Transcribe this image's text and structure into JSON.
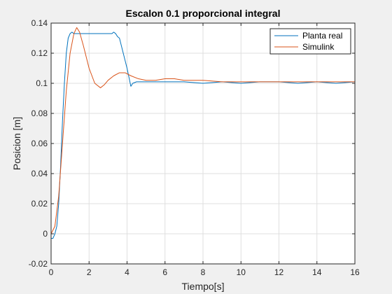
{
  "chart_data": {
    "type": "line",
    "title": "Escalon 0.1 proporcional integral",
    "xlabel": "Tiempo[s]",
    "ylabel": "Posicion [m]",
    "xlim": [
      0,
      16
    ],
    "ylim": [
      -0.02,
      0.14
    ],
    "xticks": [
      "0",
      "2",
      "4",
      "6",
      "8",
      "10",
      "12",
      "14",
      "16"
    ],
    "yticks": [
      "-0.02",
      "0",
      "0.02",
      "0.04",
      "0.06",
      "0.08",
      "0.1",
      "0.12",
      "0.14"
    ],
    "grid": true,
    "legend_position": "top-right",
    "series": [
      {
        "name": "Planta real",
        "color": "#0072BD",
        "x": [
          0,
          0.1,
          0.2,
          0.3,
          0.4,
          0.5,
          0.6,
          0.7,
          0.8,
          0.9,
          1.0,
          1.1,
          1.2,
          1.4,
          1.6,
          1.8,
          2.0,
          2.2,
          2.4,
          2.6,
          2.8,
          3.0,
          3.2,
          3.3,
          3.4,
          3.5,
          3.6,
          3.7,
          3.8,
          3.9,
          4.0,
          4.1,
          4.2,
          4.3,
          4.5,
          5.0,
          6.0,
          7.0,
          8.0,
          9.0,
          10.0,
          11.0,
          12.0,
          13.0,
          14.0,
          15.0,
          16.0
        ],
        "y": [
          -0.003,
          -0.003,
          0.0,
          0.005,
          0.02,
          0.045,
          0.075,
          0.1,
          0.12,
          0.13,
          0.133,
          0.134,
          0.133,
          0.133,
          0.133,
          0.133,
          0.133,
          0.133,
          0.133,
          0.133,
          0.133,
          0.133,
          0.133,
          0.134,
          0.133,
          0.131,
          0.13,
          0.125,
          0.12,
          0.115,
          0.11,
          0.104,
          0.098,
          0.1,
          0.101,
          0.101,
          0.101,
          0.101,
          0.1,
          0.101,
          0.1,
          0.101,
          0.101,
          0.1,
          0.101,
          0.1,
          0.101
        ]
      },
      {
        "name": "Simulink",
        "color": "#D95319",
        "x": [
          0,
          0.2,
          0.4,
          0.6,
          0.8,
          1.0,
          1.2,
          1.35,
          1.5,
          1.7,
          2.0,
          2.3,
          2.6,
          2.8,
          3.0,
          3.3,
          3.6,
          3.9,
          4.2,
          4.6,
          5.0,
          5.5,
          6.0,
          6.5,
          7.0,
          8.0,
          9.0,
          10.0,
          11.0,
          12.0,
          13.0,
          14.0,
          15.0,
          16.0
        ],
        "y": [
          0,
          0.005,
          0.025,
          0.06,
          0.095,
          0.12,
          0.133,
          0.137,
          0.134,
          0.125,
          0.11,
          0.1,
          0.097,
          0.099,
          0.102,
          0.105,
          0.107,
          0.107,
          0.105,
          0.103,
          0.102,
          0.102,
          0.103,
          0.103,
          0.102,
          0.102,
          0.101,
          0.101,
          0.101,
          0.101,
          0.101,
          0.101,
          0.101,
          0.101
        ]
      }
    ]
  }
}
